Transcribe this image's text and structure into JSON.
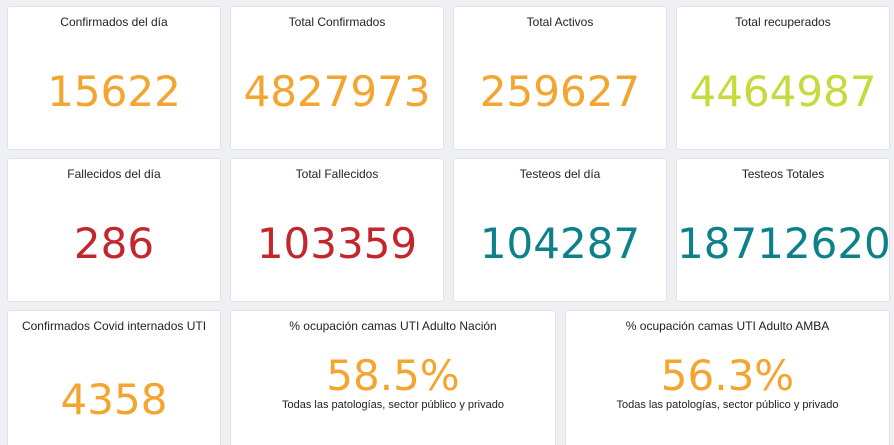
{
  "colors": {
    "orange": "#f4a52f",
    "lime": "#c7da3b",
    "red": "#c1272d",
    "teal": "#0d8189"
  },
  "cards": {
    "confirmados_dia": {
      "title": "Confirmados del día",
      "value": "15622"
    },
    "total_confirmados": {
      "title": "Total Confirmados",
      "value": "4827973"
    },
    "total_activos": {
      "title": "Total Activos",
      "value": "259627"
    },
    "total_recuperados": {
      "title": "Total recuperados",
      "value": "4464987"
    },
    "fallecidos_dia": {
      "title": "Fallecidos del día",
      "value": "286"
    },
    "total_fallecidos": {
      "title": "Total Fallecidos",
      "value": "103359"
    },
    "testeos_dia": {
      "title": "Testeos del día",
      "value": "104287"
    },
    "testeos_totales": {
      "title": "Testeos Totales",
      "value": "18712620"
    },
    "internados_uti": {
      "title": "Confirmados Covid internados UTI",
      "value": "4358"
    },
    "ocupacion_nacion": {
      "title": "% ocupación camas UTI Adulto Nación",
      "value": "58.5%",
      "subtitle": "Todas las patologías, sector público y privado"
    },
    "ocupacion_amba": {
      "title": "% ocupación camas UTI Adulto AMBA",
      "value": "56.3%",
      "subtitle": "Todas las patologías, sector público y privado"
    }
  }
}
